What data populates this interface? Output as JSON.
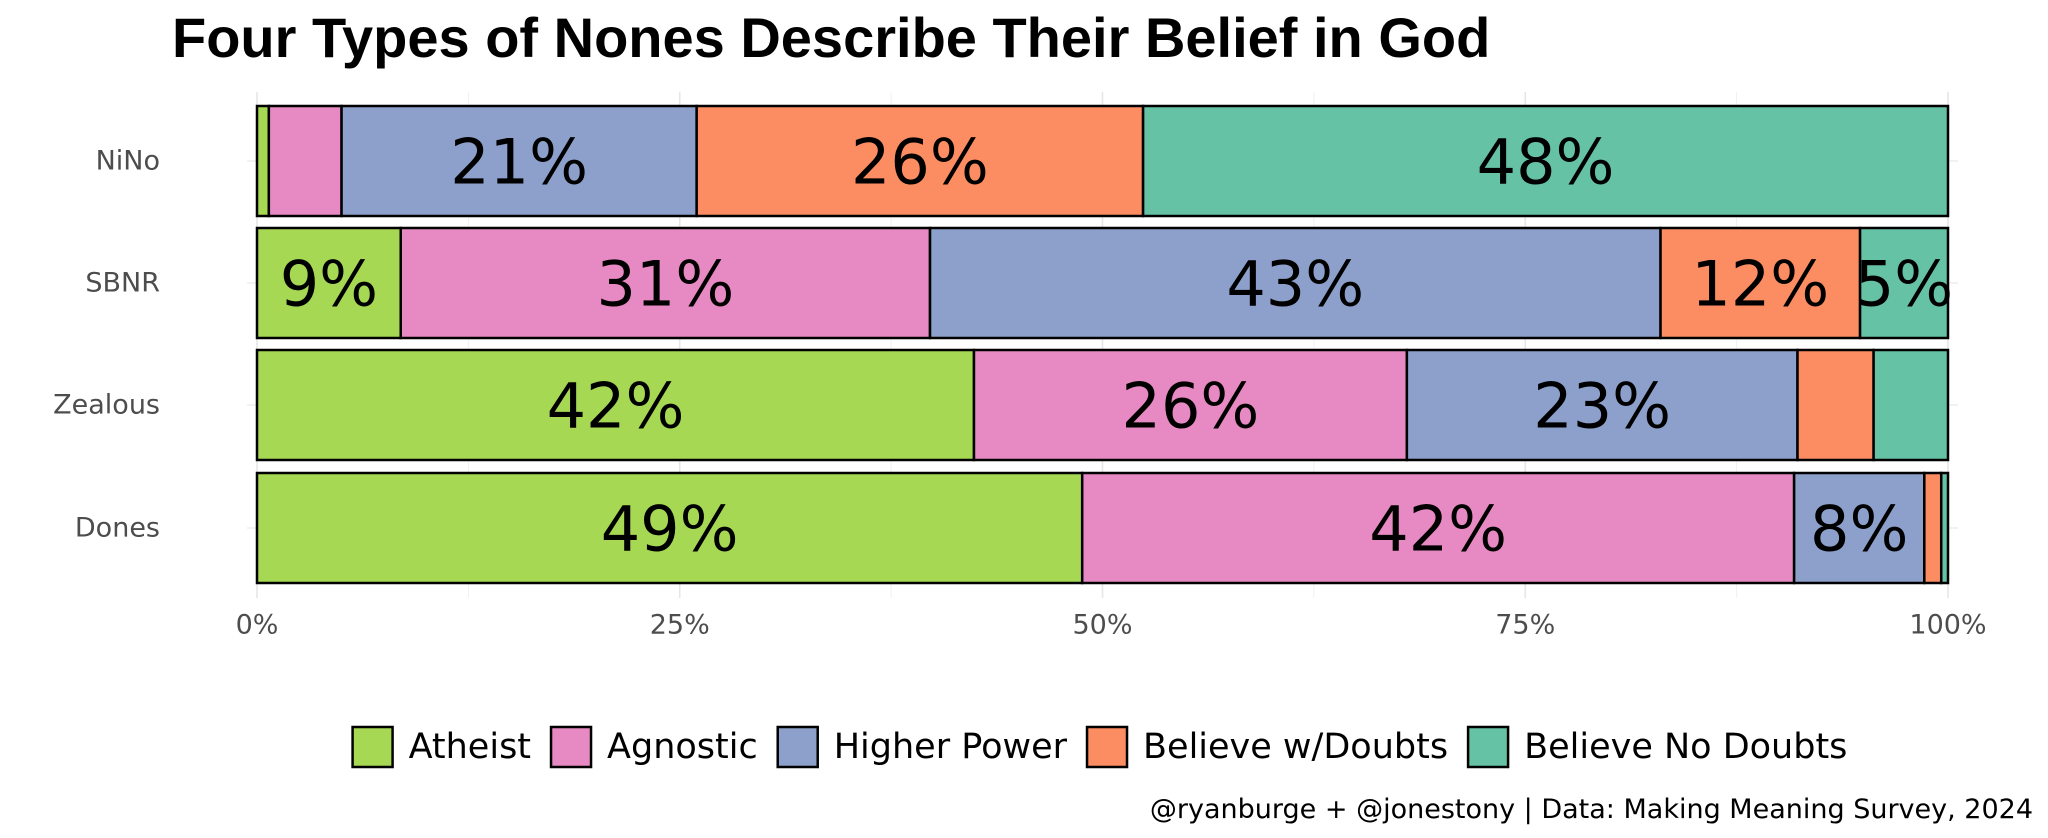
{
  "chart_data": {
    "type": "bar",
    "orientation": "horizontal",
    "stacked": true,
    "percent_scale": true,
    "title": "Four Types of Nones Describe Their Belief in God",
    "caption": "@ryanburge + @jonestony | Data: Making Meaning Survey, 2024",
    "categories": [
      "NiNo",
      "SBNR",
      "Zealous",
      "Dones"
    ],
    "x_ticks": [
      "0%",
      "25%",
      "50%",
      "75%",
      "100%"
    ],
    "xlim": [
      0,
      100
    ],
    "grid": true,
    "legend_position": "bottom",
    "series": [
      {
        "name": "Atheist",
        "color": "#a6d854",
        "values": [
          0.7,
          8.5,
          42.4,
          48.8
        ],
        "labels": [
          "",
          "9%",
          "42%",
          "49%"
        ]
      },
      {
        "name": "Agnostic",
        "color": "#e78ac3",
        "values": [
          4.3,
          31.3,
          25.6,
          42.1
        ],
        "labels": [
          "",
          "31%",
          "26%",
          "42%"
        ]
      },
      {
        "name": "Higher Power",
        "color": "#8da0cb",
        "values": [
          21.0,
          43.2,
          23.1,
          7.7
        ],
        "labels": [
          "21%",
          "43%",
          "23%",
          "8%"
        ]
      },
      {
        "name": "Believe w/Doubts",
        "color": "#fc8d62",
        "values": [
          26.4,
          11.8,
          4.5,
          1.0
        ],
        "labels": [
          "26%",
          "12%",
          "",
          ""
        ]
      },
      {
        "name": "Believe No Doubts",
        "color": "#66c2a5",
        "values": [
          47.6,
          5.2,
          4.4,
          0.4
        ],
        "labels": [
          "48%",
          "5%",
          "",
          ""
        ]
      }
    ]
  }
}
